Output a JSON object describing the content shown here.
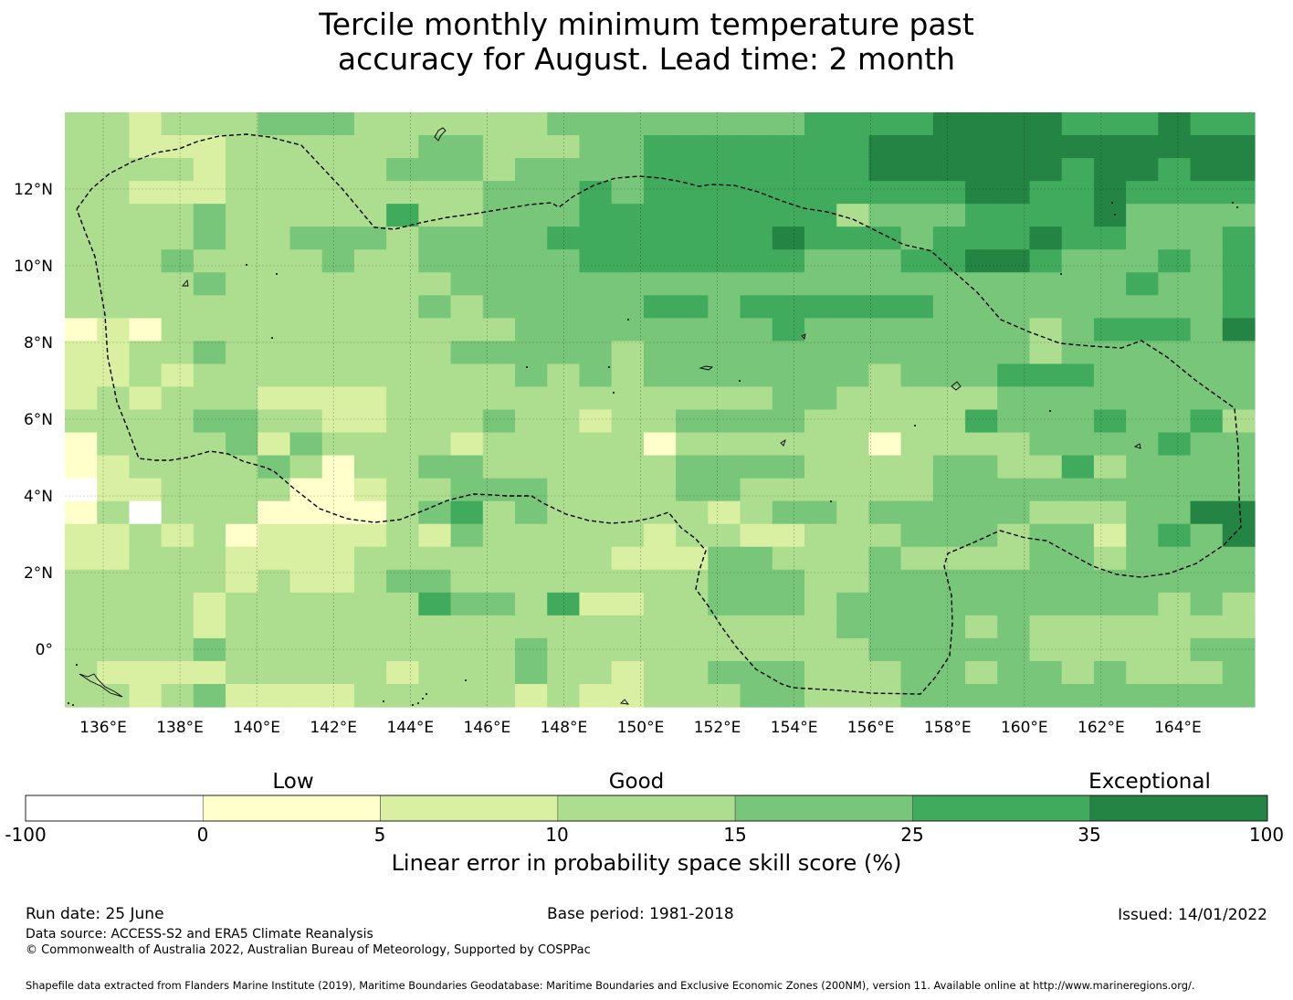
{
  "title_line1": "Tercile monthly minimum temperature past",
  "title_line2": "accuracy for August. Lead time: 2 month",
  "map": {
    "lon_range": [
      135,
      166
    ],
    "lat_range": [
      -1.5,
      14
    ],
    "cell_size_deg": 0.833,
    "lon_ticks": [
      "136°E",
      "138°E",
      "140°E",
      "142°E",
      "144°E",
      "146°E",
      "148°E",
      "150°E",
      "152°E",
      "154°E",
      "156°E",
      "158°E",
      "160°E",
      "162°E",
      "164°E"
    ],
    "lat_ticks": [
      "12°N",
      "10°N",
      "8°N",
      "6°N",
      "4°N",
      "2°N",
      "0°"
    ],
    "lon_tick_values": [
      136,
      138,
      140,
      142,
      144,
      146,
      148,
      150,
      152,
      154,
      156,
      158,
      160,
      162,
      164
    ],
    "lat_tick_values": [
      12,
      10,
      8,
      6,
      4,
      2,
      0
    ],
    "gridlines": true,
    "boundary_style": "dashed",
    "grid_rows": [
      "3323334443333334444444455556666555655",
      "3322233333344333445555555666666666666",
      "3333233333444344445555555666666566566",
      "3322233333333444545555555555665565555",
      "3333433333533444555555553444555564444",
      "3333433444344445555555655545556554445",
      "3334333343344444555555544455665444545",
      "3333433333334444444444444444444445445",
      "3333333333343444445545555554444444445",
      "1213333333333344444444544444443455546",
      "2233433333334444434444444444443444444",
      "2232333333333343434444444344455544444",
      "2323332222333333333333443333344444444",
      "3333443322333433233444433333544454453",
      "1333342433332333331333333133334444544",
      "1233334313344333333444433334433534444",
      "0223333112334443333443333334444444444",
      "1303331111345343333323443444443334466",
      "2232312222324333332332233344434424546",
      "2233322223333333322244333433334434444",
      "3333323223443333333344433444444444444",
      "3333233333354435223344434444444444343",
      "3333233333333333333333334444343333333",
      "3333433333333343333333333444443333344",
      "3222233333233343323344433344344343334",
      "3323422223333323223334433344444444444"
    ]
  },
  "colorbar": {
    "categories": [
      "Low",
      "Good",
      "Exceptional"
    ],
    "ticks": [
      "-100",
      "0",
      "5",
      "10",
      "15",
      "25",
      "35",
      "100"
    ],
    "colors": [
      "#ffffff",
      "#ffffcc",
      "#d9f0a3",
      "#addd8e",
      "#78c679",
      "#41ab5d",
      "#238443"
    ],
    "label": "Linear error in probability space skill score (%)"
  },
  "footer": {
    "run_date": "Run date: 25 June",
    "base_period": "Base period: 1981-2018",
    "issued": "Issued: 14/01/2022",
    "data_source": "Data source: ACCESS-S2 and ERA5 Climate Reanalysis",
    "copyright": "© Commonwealth of Australia 2022, Australian Bureau of Meteorology, Supported by COSPPac",
    "shapefile": "Shapefile data extracted from Flanders Marine Institute (2019), Maritime Boundaries Geodatabase: Maritime Boundaries and Exclusive Economic Zones (200NM), version 11. Available online at http://www.marineregions.org/."
  }
}
